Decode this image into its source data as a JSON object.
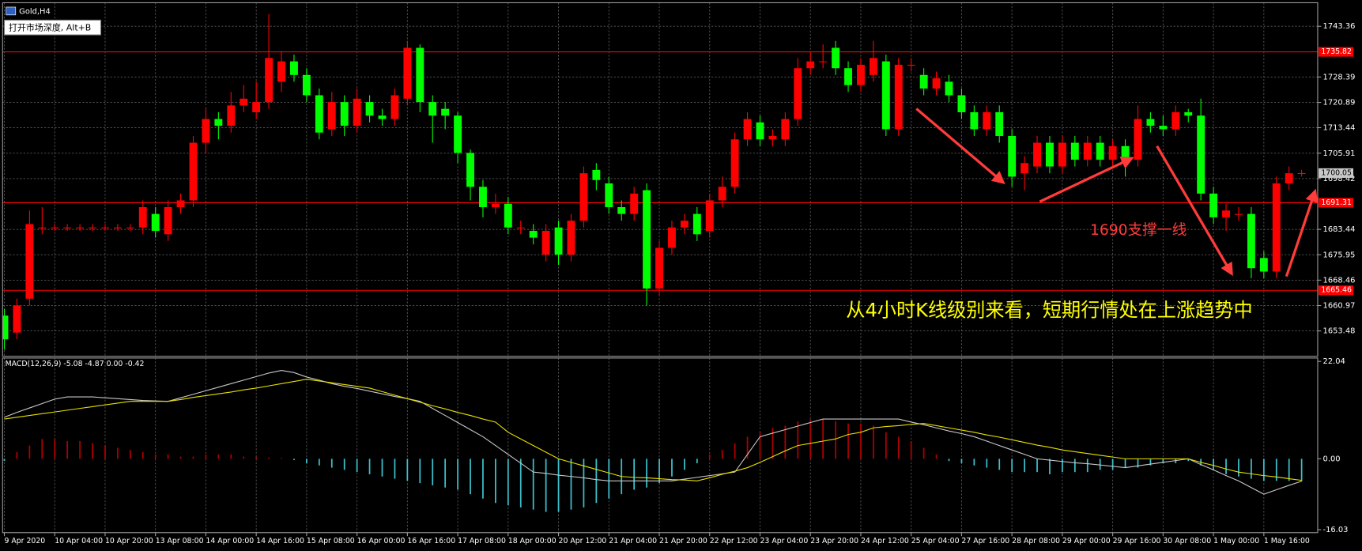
{
  "chart_data": {
    "type": "candlestick",
    "title": "Gold,H4",
    "tooltip": "打开市场深度, Alt+B",
    "categories": [
      "9 Apr 2020",
      null,
      null,
      null,
      "10 Apr 04:00",
      null,
      null,
      null,
      "10 Apr 20:00",
      null,
      null,
      null,
      "13 Apr 08:00",
      null,
      null,
      null,
      "14 Apr 00:00",
      null,
      null,
      null,
      "14 Apr 16:00",
      null,
      null,
      null,
      "15 Apr 08:00",
      null,
      null,
      null,
      "16 Apr 00:00",
      null,
      null,
      null,
      "16 Apr 16:00",
      null,
      null,
      null,
      "17 Apr 08:00",
      null,
      null,
      null,
      "18 Apr 00:00",
      null,
      null,
      null,
      "20 Apr 12:00",
      null,
      null,
      null,
      "21 Apr 04:00",
      null,
      null,
      null,
      "21 Apr 20:00",
      null,
      null,
      null,
      "22 Apr 12:00",
      null,
      null,
      null,
      "23 Apr 04:00",
      null,
      null,
      null,
      "23 Apr 20:00",
      null,
      null,
      null,
      "24 Apr 12:00",
      null,
      null,
      null,
      "25 Apr 04:00",
      null,
      null,
      null,
      "27 Apr 16:00",
      null,
      null,
      null,
      "28 Apr 08:00",
      null,
      null,
      null,
      "29 Apr 00:00",
      null,
      null,
      null,
      "29 Apr 16:00",
      null,
      null,
      null,
      "30 Apr 08:00",
      null,
      null,
      null,
      "1 May 00:00",
      null,
      null,
      null,
      "1 May 16:00",
      null,
      null,
      null
    ],
    "open": [
      1658,
      1653,
      1663,
      1684,
      1684,
      1684,
      1684,
      1684,
      1684,
      1684,
      1684,
      1684,
      1688,
      1682,
      1690,
      1692,
      1709,
      1716,
      1714,
      1720,
      1718,
      1721,
      1727,
      1733,
      1729,
      1723,
      1713,
      1721,
      1714,
      1721,
      1717,
      1716,
      1722,
      1737,
      1721,
      1719,
      1717,
      1706,
      1696,
      1690,
      1691,
      1684,
      1683,
      1676,
      1684,
      1676,
      1686,
      1701,
      1697,
      1690,
      1688,
      1695,
      1666,
      1678,
      1684,
      1688,
      1683,
      1692,
      1696,
      1710,
      1715,
      1710,
      1710,
      1716,
      1731,
      1733,
      1737,
      1731,
      1726,
      1729,
      1733,
      1713,
      1732,
      1729,
      1725,
      1727,
      1723,
      1718,
      1713,
      1718,
      1711,
      1700,
      1702,
      1709,
      1702,
      1709,
      1704,
      1709,
      1704,
      1708,
      1704,
      1716,
      1714,
      1713,
      1718,
      1717,
      1694,
      1687,
      1688,
      1688,
      1675,
      1671,
      1697,
      1700
    ],
    "high": [
      1660,
      1663,
      1689,
      1690,
      1685,
      1685,
      1685,
      1685,
      1685,
      1685,
      1685,
      1692,
      1690,
      1692,
      1694,
      1711,
      1719,
      1718,
      1724,
      1726,
      1727,
      1747,
      1736,
      1735,
      1731,
      1725,
      1724,
      1723,
      1725,
      1723,
      1719,
      1725,
      1739,
      1738,
      1723,
      1721,
      1718,
      1707,
      1698,
      1694,
      1693,
      1686,
      1685,
      1685,
      1686,
      1688,
      1702,
      1703,
      1699,
      1692,
      1696,
      1697,
      1680,
      1686,
      1688,
      1690,
      1694,
      1699,
      1712,
      1718,
      1717,
      1713,
      1718,
      1734,
      1736,
      1738,
      1739,
      1733,
      1734,
      1739,
      1735,
      1734,
      1734,
      1731,
      1730,
      1729,
      1725,
      1720,
      1720,
      1720,
      1713,
      1705,
      1711,
      1711,
      1711,
      1711,
      1711,
      1711,
      1710,
      1710,
      1720,
      1718,
      1717,
      1720,
      1719,
      1722,
      1696,
      1691,
      1690,
      1690,
      1677,
      1699,
      1702,
      1701
    ],
    "low": [
      1648,
      1651,
      1661,
      1682,
      1683,
      1683,
      1683,
      1683,
      1683,
      1683,
      1683,
      1682,
      1681,
      1680,
      1688,
      1690,
      1706,
      1710,
      1712,
      1718,
      1716,
      1719,
      1724,
      1727,
      1721,
      1710,
      1711,
      1711,
      1712,
      1715,
      1714,
      1714,
      1720,
      1718,
      1709,
      1713,
      1703,
      1692,
      1687,
      1688,
      1682,
      1682,
      1679,
      1674,
      1673,
      1674,
      1684,
      1695,
      1688,
      1686,
      1686,
      1661,
      1664,
      1676,
      1682,
      1680,
      1681,
      1690,
      1694,
      1708,
      1708,
      1708,
      1708,
      1714,
      1729,
      1731,
      1729,
      1724,
      1724,
      1727,
      1711,
      1711,
      1730,
      1723,
      1723,
      1721,
      1716,
      1711,
      1711,
      1709,
      1696,
      1695,
      1700,
      1700,
      1700,
      1702,
      1702,
      1702,
      1702,
      1699,
      1702,
      1712,
      1711,
      1711,
      1715,
      1692,
      1685,
      1683,
      1686,
      1669,
      1669,
      1669,
      1695,
      1699
    ],
    "close": [
      1651,
      1661,
      1685,
      1684,
      1684,
      1684,
      1684,
      1684,
      1684,
      1684,
      1684,
      1690,
      1683,
      1690,
      1692,
      1709,
      1716,
      1714,
      1720,
      1722,
      1721,
      1734,
      1733,
      1729,
      1723,
      1712,
      1721,
      1714,
      1722,
      1717,
      1716,
      1723,
      1737,
      1721,
      1717,
      1717,
      1706,
      1696,
      1690,
      1691,
      1684,
      1684,
      1681,
      1683,
      1676,
      1686,
      1700,
      1698,
      1690,
      1688,
      1694,
      1666,
      1678,
      1684,
      1686,
      1682,
      1692,
      1696,
      1710,
      1716,
      1710,
      1711,
      1716,
      1731,
      1733,
      1733,
      1731,
      1726,
      1732,
      1734,
      1713,
      1732,
      1732,
      1725,
      1728,
      1723,
      1718,
      1713,
      1718,
      1711,
      1699,
      1703,
      1709,
      1702,
      1709,
      1704,
      1709,
      1704,
      1708,
      1703,
      1716,
      1714,
      1713,
      1718,
      1717,
      1694,
      1687,
      1689,
      1688,
      1672,
      1671,
      1697,
      1700,
      1700.05
    ],
    "up_color": "#ff0000",
    "down_color": "#00ff00",
    "ylim": [
      1646.0,
      1750.3
    ],
    "yticks": [
      1743.36,
      1728.39,
      1720.89,
      1713.44,
      1705.91,
      1698.42,
      1683.44,
      1675.95,
      1668.46,
      1660.97,
      1653.48
    ],
    "levels": [
      1735.82,
      1691.31,
      1665.46
    ],
    "level_color": "#ff0000",
    "grid": true,
    "annotations": [
      {
        "text": "1690支撑一线",
        "color": "#ff3b3b"
      },
      {
        "text": "从4小时K线级别来看，短期行情处在上涨趋势中",
        "color": "#ffff00"
      }
    ],
    "indicator": {
      "type": "macd",
      "label": "MACD(12,26,9) -5.08 -4.87 0.00 -0.42",
      "histogram": [
        -0.5,
        1.5,
        3,
        4.5,
        4.5,
        4,
        4,
        3.5,
        3,
        2.5,
        2,
        1.5,
        1,
        1,
        0.5,
        0.5,
        1,
        1,
        1,
        0.5,
        0.5,
        0.3,
        0.2,
        -0.3,
        -1,
        -1.5,
        -2,
        -2.5,
        -3,
        -3.5,
        -4,
        -4.5,
        -5,
        -5.5,
        -6,
        -6.5,
        -7,
        -8,
        -9,
        -10,
        -10.5,
        -11,
        -11.5,
        -12,
        -12,
        -11.5,
        -11,
        -10,
        -9,
        -8,
        -7,
        -6.5,
        -5.5,
        -4,
        -2.5,
        -1,
        1,
        2,
        3.5,
        5,
        6,
        7,
        7.5,
        8.5,
        9,
        9,
        8.5,
        8,
        8,
        7.5,
        6,
        5,
        4,
        2.5,
        1,
        -0.5,
        -1,
        -1.5,
        -2,
        -2.5,
        -3,
        -3,
        -3,
        -3.5,
        -3,
        -3,
        -3,
        -2.5,
        -2.5,
        -2,
        -2,
        -1.5,
        -1,
        -1,
        -0.5,
        -1.5,
        -2.5,
        -3.5,
        -4,
        -4.5,
        -5,
        -5,
        -5,
        -5.08
      ],
      "main": [
        9.4,
        10.5,
        11.5,
        12.5,
        13.5,
        14,
        14,
        14,
        13.8,
        13.6,
        13.4,
        13.2,
        13.1,
        13,
        13.8,
        14.6,
        15.4,
        16.2,
        17,
        17.8,
        18.6,
        19.4,
        20,
        19.5,
        18.5,
        17.8,
        17,
        16.4,
        15.9,
        15.3,
        14.7,
        14.1,
        13.6,
        13,
        11.4,
        9.8,
        8.2,
        6.6,
        5,
        3,
        1,
        -1,
        -3,
        -3.3,
        -3.7,
        -4,
        -4.3,
        -4.7,
        -5,
        -5,
        -5,
        -5,
        -5,
        -5,
        -4.6,
        -4.2,
        -3.8,
        -3.4,
        -3,
        1,
        5,
        5.8,
        6.6,
        7.4,
        8.2,
        9,
        9,
        9,
        9,
        9,
        9,
        9,
        8.3,
        7.7,
        7,
        6.3,
        5.7,
        5,
        4,
        3,
        2,
        1,
        0,
        -0.3,
        -0.6,
        -0.9,
        -1.1,
        -1.4,
        -1.7,
        -2,
        -1.6,
        -1.2,
        -0.8,
        -0.4,
        0,
        -1.3,
        -2.5,
        -3.8,
        -5,
        -6.5,
        -8,
        -7,
        -6,
        -5.08
      ],
      "signal": [
        9,
        9.4,
        9.8,
        10.2,
        10.6,
        11,
        11.4,
        11.8,
        12.2,
        12.6,
        13,
        13,
        13,
        13,
        13.4,
        13.9,
        14.3,
        14.7,
        15.1,
        15.6,
        16,
        16.5,
        17,
        17.5,
        18,
        17.6,
        17.2,
        16.8,
        16.4,
        16,
        15.2,
        14.4,
        13.6,
        12.8,
        12,
        11.3,
        10.5,
        9.8,
        9,
        8.3,
        6,
        4.5,
        3,
        1.5,
        0,
        -0.8,
        -1.6,
        -2.4,
        -3.2,
        -4,
        -4.2,
        -4.3,
        -4.5,
        -4.7,
        -4.8,
        -5,
        -4.3,
        -3.5,
        -2.8,
        -2,
        -0.8,
        0.5,
        1.8,
        3,
        3.5,
        4,
        4.5,
        5.5,
        6,
        7,
        7.3,
        7.5,
        7.8,
        8,
        7.5,
        7,
        6.5,
        6,
        5.4,
        4.9,
        4.3,
        3.7,
        3.1,
        2.6,
        2,
        1.6,
        1.2,
        0.8,
        0.4,
        0,
        0,
        0,
        0,
        0,
        0,
        -0.8,
        -1.5,
        -2.3,
        -3,
        -3.4,
        -3.8,
        -4.1,
        -4.5,
        -4.87
      ],
      "up_color": "#b00000",
      "down_color": "#3cc0cc",
      "main_color": "#c8c8c8",
      "signal_color": "#e8e000",
      "ylim": [
        -16.7,
        22.8
      ],
      "yticks": [
        22.04,
        {
          "value": 0,
          "label": "0.00"
        },
        -16.03
      ]
    }
  }
}
